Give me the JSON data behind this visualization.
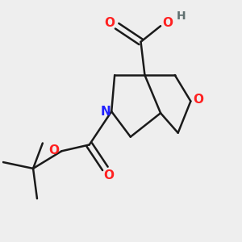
{
  "background_color": "#eeeeee",
  "bond_color": "#1a1a1a",
  "N_color": "#2020ff",
  "O_color": "#ff2020",
  "H_color": "#607070",
  "line_width": 1.8,
  "figsize": [
    3.0,
    3.0
  ],
  "dpi": 100,
  "xlim": [
    0,
    3
  ],
  "ylim": [
    0,
    3
  ]
}
